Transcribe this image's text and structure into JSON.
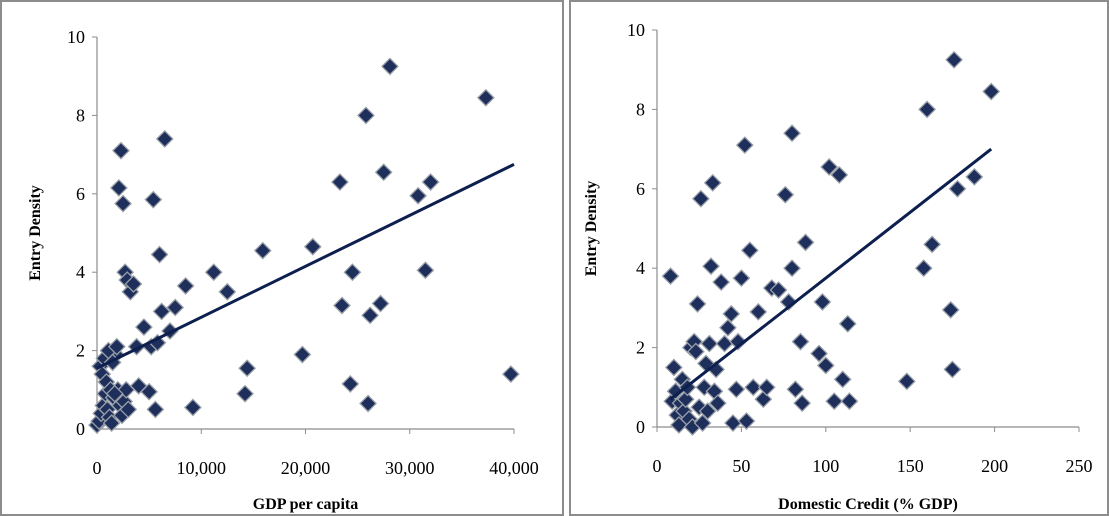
{
  "chart_data": [
    {
      "type": "scatter",
      "title": "",
      "xlabel": "GDP per capita",
      "ylabel": "Entry Density",
      "xlim": [
        0,
        40000
      ],
      "ylim": [
        0,
        10
      ],
      "xticks": [
        0,
        10000,
        20000,
        30000,
        40000
      ],
      "xtick_labels": [
        "0",
        "10,000",
        "20,000",
        "30,000",
        "40,000"
      ],
      "yticks": [
        0,
        2,
        4,
        6,
        8,
        10
      ],
      "ytick_labels": [
        "0",
        "2",
        "4",
        "6",
        "8",
        "10"
      ],
      "grid": false,
      "legend": "none",
      "marker": "diamond",
      "marker_color": "#1f2f5c",
      "trendline": {
        "x": [
          0,
          40000
        ],
        "y": [
          1.55,
          6.75
        ],
        "color": "#0d1f4f"
      },
      "x": [
        0,
        200,
        400,
        600,
        800,
        1000,
        1200,
        1400,
        1600,
        1800,
        2000,
        2200,
        2400,
        2600,
        2800,
        3000,
        300,
        500,
        700,
        900,
        1100,
        1300,
        1500,
        1700,
        1900,
        2100,
        2300,
        2500,
        2700,
        2900,
        3200,
        3500,
        3800,
        4000,
        4500,
        5000,
        5200,
        5400,
        5600,
        5800,
        6000,
        6200,
        6500,
        7000,
        7500,
        8500,
        9200,
        11200,
        12500,
        14200,
        14400,
        15900,
        19700,
        20700,
        23300,
        23500,
        24300,
        24500,
        25800,
        26000,
        26200,
        27200,
        27500,
        30800,
        31500,
        32000,
        28100,
        37300,
        39700
      ],
      "y": [
        0.1,
        0.2,
        0.4,
        0.6,
        0.9,
        0.5,
        0.3,
        0.15,
        0.8,
        1.9,
        1.0,
        0.6,
        0.35,
        0.7,
        1.0,
        0.5,
        1.6,
        1.4,
        1.8,
        1.2,
        2.0,
        1.0,
        1.7,
        0.9,
        2.1,
        6.15,
        7.1,
        5.75,
        4.0,
        3.8,
        3.5,
        3.7,
        2.1,
        1.1,
        2.6,
        0.95,
        2.1,
        5.85,
        0.5,
        2.2,
        4.45,
        3.0,
        7.4,
        2.5,
        3.1,
        3.65,
        0.55,
        4.0,
        3.5,
        0.9,
        1.55,
        4.55,
        1.9,
        4.65,
        6.3,
        3.15,
        1.15,
        4.0,
        8.0,
        0.65,
        2.9,
        3.2,
        6.55,
        5.95,
        4.05,
        6.3,
        9.25,
        8.45,
        1.4
      ]
    },
    {
      "type": "scatter",
      "title": "",
      "xlabel": "Domestic Credit (% GDP)",
      "ylabel": "Entry Density",
      "xlim": [
        0,
        250
      ],
      "ylim": [
        0,
        10
      ],
      "xticks": [
        0,
        50,
        100,
        150,
        200,
        250
      ],
      "xtick_labels": [
        "0",
        "50",
        "100",
        "150",
        "200",
        "250"
      ],
      "yticks": [
        0,
        2,
        4,
        6,
        8,
        10
      ],
      "ytick_labels": [
        "0",
        "2",
        "4",
        "6",
        "8",
        "10"
      ],
      "grid": false,
      "legend": "none",
      "marker": "diamond",
      "marker_color": "#1f2f5c",
      "trendline": {
        "x": [
          8,
          198
        ],
        "y": [
          0.7,
          7.0
        ],
        "color": "#0d1f4f"
      },
      "x": [
        8,
        9,
        10,
        11,
        12,
        13,
        14,
        15,
        16,
        17,
        18,
        19,
        20,
        21,
        22,
        23,
        24,
        25,
        26,
        27,
        28,
        29,
        30,
        31,
        32,
        33,
        34,
        35,
        36,
        38,
        40,
        42,
        44,
        45,
        47,
        48,
        50,
        52,
        53,
        55,
        57,
        60,
        63,
        65,
        68,
        72,
        76,
        78,
        80,
        80,
        82,
        85,
        86,
        88,
        96,
        98,
        100,
        102,
        105,
        108,
        110,
        113,
        114,
        148,
        158,
        160,
        163,
        174,
        175,
        176,
        178,
        188,
        198
      ],
      "y": [
        3.8,
        0.65,
        1.5,
        0.9,
        0.3,
        0.05,
        0.6,
        1.2,
        0.4,
        0.7,
        1.0,
        0.2,
        2.0,
        0.0,
        2.15,
        1.9,
        3.1,
        0.5,
        5.75,
        0.1,
        1.0,
        1.6,
        0.4,
        2.1,
        4.05,
        6.15,
        0.9,
        1.45,
        0.6,
        3.65,
        2.1,
        2.5,
        2.85,
        0.1,
        0.95,
        2.15,
        3.75,
        7.1,
        0.15,
        4.45,
        1.0,
        2.9,
        0.7,
        1.0,
        3.5,
        3.45,
        5.85,
        3.15,
        4.0,
        7.4,
        0.95,
        2.15,
        0.6,
        4.65,
        1.85,
        3.15,
        1.55,
        6.55,
        0.65,
        6.35,
        1.2,
        2.6,
        0.65,
        1.15,
        4.0,
        8.0,
        4.6,
        2.95,
        1.45,
        9.25,
        6.0,
        6.3,
        8.45
      ]
    }
  ]
}
